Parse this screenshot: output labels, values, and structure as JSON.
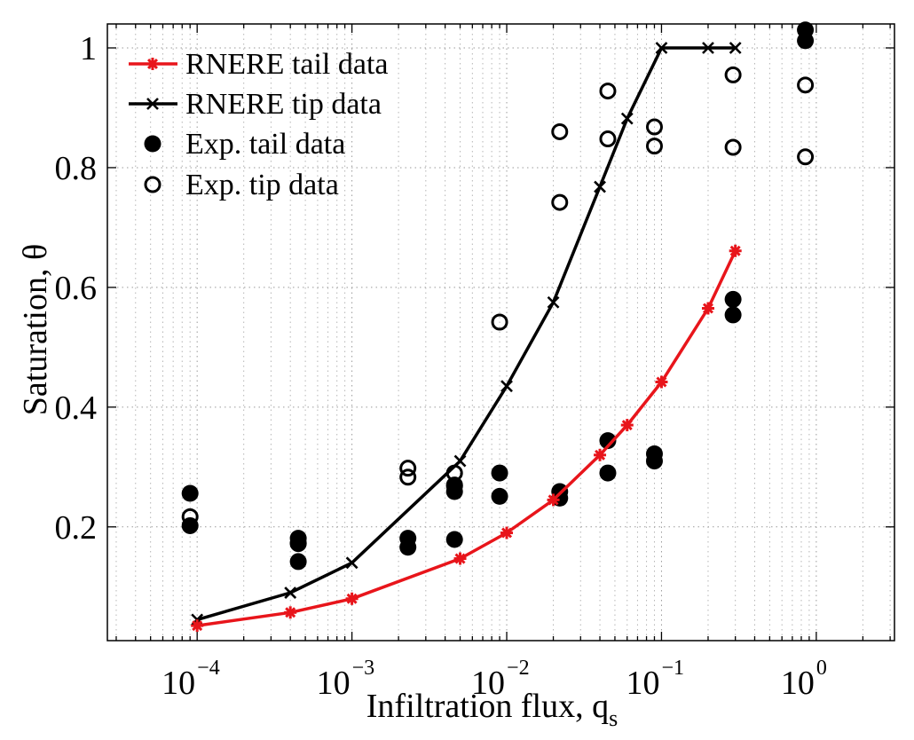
{
  "chart_data": {
    "type": "scatter",
    "xscale": "log",
    "xlim": [
      2.63e-05,
      3.2
    ],
    "ylim": [
      0.01,
      1.04
    ],
    "xlabel": "Infiltration flux, q",
    "xlabel_subscript": "s",
    "ylabel": "Saturation, θ",
    "x_ticks": [
      {
        "value": 0.0001,
        "base": "10",
        "exp": "−4"
      },
      {
        "value": 0.001,
        "base": "10",
        "exp": "−3"
      },
      {
        "value": 0.01,
        "base": "10",
        "exp": "−2"
      },
      {
        "value": 0.1,
        "base": "10",
        "exp": "−1"
      },
      {
        "value": 1,
        "base": "10",
        "exp": "0"
      }
    ],
    "y_ticks": [
      {
        "value": 0.2,
        "label": "0.2"
      },
      {
        "value": 0.4,
        "label": "0.4"
      },
      {
        "value": 0.6,
        "label": "0.6"
      },
      {
        "value": 0.8,
        "label": "0.8"
      },
      {
        "value": 1.0,
        "label": "1"
      }
    ],
    "grid": true,
    "legend_position": "top-left",
    "series": [
      {
        "name": "RNERE tail data",
        "style": "line-star",
        "color": "#e8151b",
        "x": [
          0.0001,
          0.0004,
          0.001,
          0.005,
          0.01,
          0.02,
          0.04,
          0.06,
          0.1,
          0.2,
          0.3
        ],
        "y": [
          0.035,
          0.057,
          0.08,
          0.147,
          0.19,
          0.245,
          0.32,
          0.37,
          0.442,
          0.565,
          0.661
        ]
      },
      {
        "name": "RNERE tip data",
        "style": "line-x",
        "color": "#000000",
        "x": [
          0.0001,
          0.0004,
          0.001,
          0.005,
          0.01,
          0.02,
          0.04,
          0.06,
          0.1,
          0.2,
          0.3
        ],
        "y": [
          0.045,
          0.09,
          0.14,
          0.31,
          0.435,
          0.575,
          0.768,
          0.882,
          1.0,
          1.0,
          1.0
        ]
      },
      {
        "name": "Exp. tail data",
        "style": "filled-circle",
        "color": "#000000",
        "x": [
          9e-05,
          9e-05,
          0.00045,
          0.00045,
          0.00045,
          0.0023,
          0.0023,
          0.0046,
          0.0046,
          0.0046,
          0.009,
          0.009,
          0.022,
          0.022,
          0.045,
          0.045,
          0.09,
          0.09,
          0.29,
          0.29,
          0.85,
          0.85
        ],
        "y": [
          0.202,
          0.256,
          0.142,
          0.172,
          0.181,
          0.166,
          0.181,
          0.259,
          0.268,
          0.179,
          0.251,
          0.29,
          0.248,
          0.259,
          0.29,
          0.344,
          0.31,
          0.322,
          0.554,
          0.58,
          1.012,
          1.03
        ]
      },
      {
        "name": "Exp. tip data",
        "style": "open-circle",
        "color": "#000000",
        "x": [
          9e-05,
          0.00045,
          0.0023,
          0.0023,
          0.0046,
          0.0046,
          0.009,
          0.022,
          0.022,
          0.045,
          0.045,
          0.09,
          0.09,
          0.29,
          0.29,
          0.85,
          0.85
        ],
        "y": [
          0.217,
          0.173,
          0.283,
          0.298,
          0.27,
          0.29,
          0.542,
          0.742,
          0.86,
          0.848,
          0.928,
          0.836,
          0.868,
          0.834,
          0.955,
          0.818,
          0.938
        ]
      }
    ]
  }
}
